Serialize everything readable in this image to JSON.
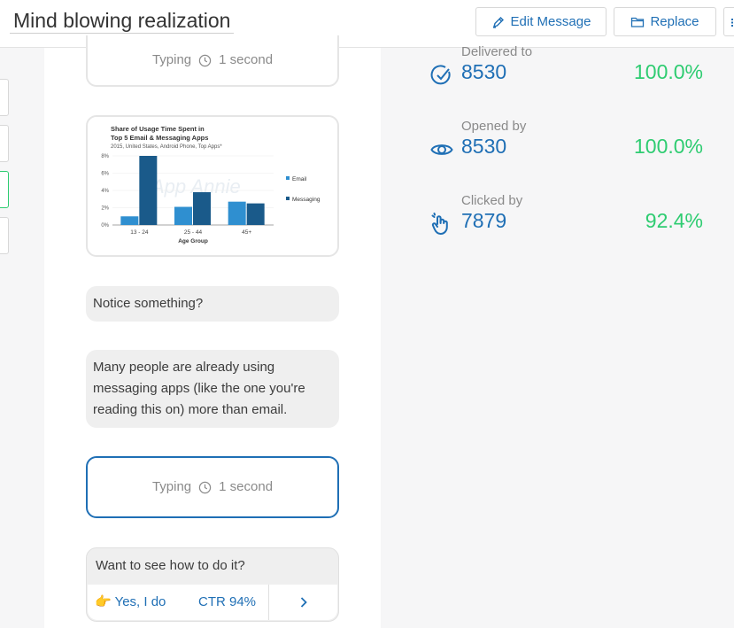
{
  "header": {
    "title": "Mind blowing realization",
    "edit_label": "Edit Message",
    "replace_label": "Replace"
  },
  "colors": {
    "accent": "#1f6fb5",
    "success": "#2ecc71",
    "bubble_gray": "#efefef"
  },
  "messages": {
    "typing1": {
      "label": "Typing",
      "duration": "1 second"
    },
    "msg1": "Notice something?",
    "msg2": "Many people are already using messaging apps (like the one you're reading this on) more than email.",
    "typing2": {
      "label": "Typing",
      "duration": "1 second"
    },
    "cta": {
      "question": "Want to see how to do it?",
      "button": "👉 Yes, I do",
      "ctr": "CTR 94%"
    }
  },
  "chart_data": {
    "type": "bar",
    "title": "Share of Usage Time Spent in",
    "title2": "Top 5 Email & Messaging Apps",
    "subtitle": "2015, United States, Android Phone, Top Apps*",
    "watermark": "App Annie",
    "xlabel": "Age Group",
    "ylabel": "",
    "categories": [
      "13 - 24",
      "25 - 44",
      "45+"
    ],
    "series": [
      {
        "name": "Email",
        "color": "#2f8fd0",
        "values": [
          1.0,
          2.1,
          2.7
        ]
      },
      {
        "name": "Messaging",
        "color": "#1a5a8a",
        "values": [
          8.0,
          3.8,
          2.5
        ]
      }
    ],
    "ylim": [
      0,
      8
    ],
    "yticks": [
      "0%",
      "2%",
      "4%",
      "6%",
      "8%"
    ],
    "legend": "right"
  },
  "stats": [
    {
      "label": "Delivered to",
      "count": "8530",
      "pct": "100.0%",
      "icon": "check-circle-icon"
    },
    {
      "label": "Opened by",
      "count": "8530",
      "pct": "100.0%",
      "icon": "eye-icon"
    },
    {
      "label": "Clicked by",
      "count": "7879",
      "pct": "92.4%",
      "icon": "tap-hand-icon"
    }
  ]
}
